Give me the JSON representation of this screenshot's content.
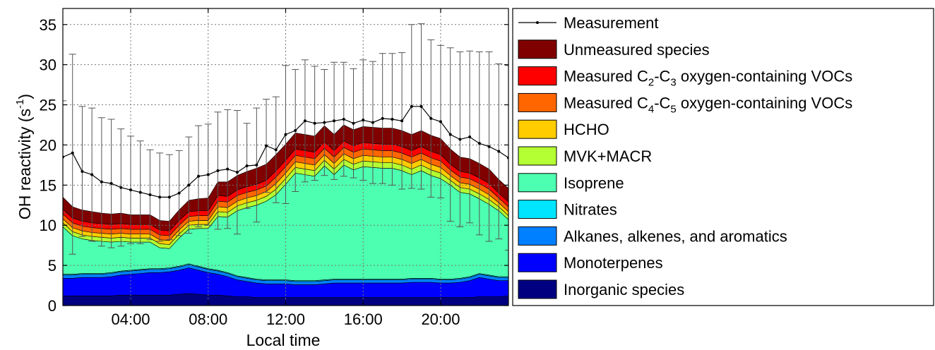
{
  "chart_data": {
    "type": "area",
    "x": [
      0.5,
      1,
      1.5,
      2,
      2.5,
      3,
      3.5,
      4,
      4.5,
      5,
      5.5,
      6,
      6.5,
      7,
      7.5,
      8,
      8.5,
      9,
      9.5,
      10,
      10.5,
      11,
      11.5,
      12,
      12.5,
      13,
      13.5,
      14,
      14.5,
      15,
      15.5,
      16,
      16.5,
      17,
      17.5,
      18,
      18.5,
      19,
      19.5,
      20,
      20.5,
      21,
      21.5,
      22,
      22.5,
      23,
      23.5
    ],
    "x_ticks": [
      4,
      8,
      12,
      16,
      20
    ],
    "x_tick_labels": [
      "04:00",
      "08:00",
      "12:00",
      "16:00",
      "20:00"
    ],
    "xlim": [
      0.5,
      23.5
    ],
    "xlabel": "Local time",
    "ylabel": "OH reactivity (s",
    "ylabel_sup": "-1",
    "ylabel_close": ")",
    "ylim": [
      0,
      37
    ],
    "y_ticks": [
      0,
      5,
      10,
      15,
      20,
      25,
      30,
      35
    ],
    "y_tick_labels": [
      "0",
      "5",
      "10",
      "15",
      "20",
      "25",
      "30",
      "35"
    ],
    "grid": true,
    "legend_placement": "right",
    "series": [
      {
        "name": "Inorganic species",
        "color": "#000080",
        "values": [
          1.2,
          1.2,
          1.2,
          1.2,
          1.2,
          1.2,
          1.3,
          1.3,
          1.3,
          1.3,
          1.3,
          1.3,
          1.4,
          1.5,
          1.4,
          1.3,
          1.3,
          1.2,
          1.1,
          1.1,
          1.0,
          1.0,
          1.0,
          1.0,
          1.0,
          1.0,
          1.0,
          1.0,
          1.0,
          1.0,
          1.0,
          1.0,
          1.0,
          1.0,
          1.0,
          1.0,
          1.0,
          1.0,
          1.0,
          1.0,
          1.0,
          1.0,
          1.0,
          1.1,
          1.1,
          1.1,
          1.2
        ]
      },
      {
        "name": "Monoterpenes",
        "color": "#0000ff",
        "values": [
          2.2,
          2.2,
          2.3,
          2.3,
          2.3,
          2.4,
          2.5,
          2.6,
          2.7,
          2.8,
          2.8,
          2.9,
          3.0,
          3.2,
          3.0,
          2.8,
          2.6,
          2.4,
          2.1,
          1.9,
          1.8,
          1.7,
          1.7,
          1.7,
          1.6,
          1.6,
          1.6,
          1.7,
          1.8,
          1.8,
          1.8,
          1.8,
          1.8,
          1.8,
          1.8,
          1.8,
          1.9,
          1.9,
          1.9,
          1.8,
          1.8,
          1.9,
          2.1,
          2.4,
          2.2,
          2.0,
          1.9
        ]
      },
      {
        "name": "Alkanes, alkenes, and aromatics",
        "color": "#0080ff",
        "values": [
          0.4,
          0.4,
          0.4,
          0.4,
          0.4,
          0.4,
          0.4,
          0.4,
          0.4,
          0.4,
          0.4,
          0.4,
          0.4,
          0.4,
          0.4,
          0.4,
          0.4,
          0.4,
          0.4,
          0.4,
          0.4,
          0.4,
          0.4,
          0.4,
          0.4,
          0.4,
          0.4,
          0.4,
          0.4,
          0.4,
          0.4,
          0.4,
          0.4,
          0.4,
          0.4,
          0.4,
          0.4,
          0.4,
          0.4,
          0.4,
          0.4,
          0.4,
          0.4,
          0.4,
          0.4,
          0.4,
          0.4
        ]
      },
      {
        "name": "Nitrates",
        "color": "#00e5ff",
        "values": [
          0.1,
          0.1,
          0.1,
          0.1,
          0.1,
          0.1,
          0.1,
          0.1,
          0.1,
          0.1,
          0.1,
          0.1,
          0.1,
          0.1,
          0.1,
          0.1,
          0.1,
          0.1,
          0.1,
          0.1,
          0.1,
          0.1,
          0.1,
          0.1,
          0.1,
          0.1,
          0.1,
          0.1,
          0.1,
          0.1,
          0.1,
          0.1,
          0.1,
          0.1,
          0.1,
          0.1,
          0.1,
          0.1,
          0.1,
          0.1,
          0.1,
          0.1,
          0.1,
          0.1,
          0.1,
          0.1,
          0.1
        ]
      },
      {
        "name": "Isoprene",
        "color": "#4dffb0",
        "values": [
          5.9,
          4.8,
          4.3,
          4.1,
          4.0,
          3.8,
          3.7,
          3.5,
          3.4,
          3.3,
          2.6,
          2.4,
          3.5,
          4.3,
          4.7,
          5.0,
          6.7,
          6.9,
          8.1,
          8.7,
          9.2,
          9.8,
          10.6,
          11.9,
          13.4,
          13.2,
          13.0,
          14.2,
          13.0,
          14.2,
          13.6,
          14.0,
          13.9,
          13.8,
          13.8,
          13.5,
          12.9,
          13.4,
          12.8,
          12.5,
          11.7,
          10.7,
          10.3,
          9.3,
          8.8,
          8.2,
          7.1
        ]
      },
      {
        "name": "MVK+MACR",
        "color": "#b3ff33",
        "values": [
          0.5,
          0.5,
          0.5,
          0.5,
          0.5,
          0.5,
          0.5,
          0.5,
          0.5,
          0.5,
          0.5,
          0.5,
          0.5,
          0.5,
          0.5,
          0.5,
          0.6,
          0.6,
          0.6,
          0.6,
          0.6,
          0.6,
          0.7,
          0.7,
          0.7,
          0.7,
          0.7,
          0.7,
          0.7,
          0.7,
          0.7,
          0.7,
          0.7,
          0.7,
          0.7,
          0.7,
          0.7,
          0.7,
          0.7,
          0.7,
          0.6,
          0.6,
          0.6,
          0.6,
          0.6,
          0.5,
          0.5
        ]
      },
      {
        "name": "HCHO",
        "color": "#ffcc00",
        "values": [
          0.5,
          0.5,
          0.5,
          0.5,
          0.5,
          0.5,
          0.5,
          0.5,
          0.5,
          0.5,
          0.5,
          0.5,
          0.5,
          0.5,
          0.5,
          0.5,
          0.6,
          0.6,
          0.6,
          0.6,
          0.6,
          0.6,
          0.7,
          0.7,
          0.7,
          0.7,
          0.7,
          0.7,
          0.7,
          0.7,
          0.7,
          0.7,
          0.7,
          0.7,
          0.7,
          0.7,
          0.7,
          0.7,
          0.7,
          0.7,
          0.6,
          0.6,
          0.6,
          0.6,
          0.6,
          0.5,
          0.5
        ]
      },
      {
        "name": "Measured C4-C5 oxygen-containing VOCs",
        "label_parts": [
          "Measured C",
          "4",
          "-C",
          "5",
          " oxygen-containing VOCs"
        ],
        "color": "#ff6600",
        "values": [
          0.6,
          0.6,
          0.6,
          0.6,
          0.6,
          0.6,
          0.6,
          0.6,
          0.6,
          0.6,
          0.6,
          0.6,
          0.6,
          0.6,
          0.6,
          0.6,
          0.7,
          0.7,
          0.7,
          0.7,
          0.7,
          0.7,
          0.8,
          0.8,
          0.8,
          0.8,
          0.8,
          0.8,
          0.8,
          0.8,
          0.8,
          0.8,
          0.8,
          0.8,
          0.8,
          0.8,
          0.8,
          0.8,
          0.8,
          0.8,
          0.7,
          0.7,
          0.7,
          0.7,
          0.7,
          0.6,
          0.6
        ]
      },
      {
        "name": "Measured C2-C3 oxygen-containing VOCs",
        "label_parts": [
          "Measured C",
          "2",
          "-C",
          "3",
          " oxygen-containing VOCs"
        ],
        "color": "#ff0000",
        "values": [
          0.6,
          0.6,
          0.6,
          0.6,
          0.6,
          0.6,
          0.6,
          0.6,
          0.6,
          0.6,
          0.6,
          0.6,
          0.6,
          0.6,
          0.6,
          0.6,
          0.7,
          0.7,
          0.7,
          0.7,
          0.7,
          0.7,
          0.8,
          0.8,
          0.8,
          0.8,
          0.8,
          0.8,
          0.8,
          0.8,
          0.8,
          0.8,
          0.8,
          0.8,
          0.8,
          0.8,
          0.8,
          0.8,
          0.8,
          0.8,
          0.7,
          0.7,
          0.7,
          0.7,
          0.7,
          0.6,
          0.6
        ]
      },
      {
        "name": "Unmeasured species",
        "color": "#800000",
        "values": [
          1.5,
          1.4,
          1.4,
          1.4,
          1.3,
          1.3,
          1.3,
          1.2,
          1.2,
          1.2,
          1.2,
          1.2,
          1.3,
          1.4,
          1.5,
          1.6,
          1.7,
          1.8,
          1.8,
          1.9,
          2.0,
          2.0,
          2.0,
          2.0,
          2.0,
          2.0,
          2.0,
          2.0,
          2.0,
          2.0,
          2.0,
          2.0,
          2.0,
          2.0,
          2.0,
          2.0,
          2.0,
          2.0,
          2.0,
          2.0,
          1.9,
          1.8,
          1.8,
          1.8,
          1.8,
          1.7,
          1.7
        ]
      }
    ],
    "measurement": {
      "name": "Measurement",
      "color": "#000000",
      "values": [
        18.5,
        19.0,
        16.7,
        16.3,
        15.4,
        15.2,
        14.7,
        14.4,
        14.1,
        13.8,
        13.5,
        13.5,
        14.0,
        15.0,
        16.1,
        16.3,
        16.8,
        17.0,
        16.6,
        17.4,
        17.5,
        19.9,
        19.4,
        21.3,
        21.8,
        23.0,
        22.7,
        22.8,
        23.0,
        23.2,
        22.7,
        23.1,
        22.8,
        23.3,
        23.2,
        23.0,
        24.8,
        24.8,
        23.3,
        22.9,
        21.3,
        20.7,
        21.0,
        20.2,
        19.8,
        19.2,
        18.4
      ],
      "err_upper": [
        25.5,
        31.3,
        24.8,
        24.6,
        23.4,
        23.2,
        22.0,
        21.1,
        20.5,
        19.4,
        19.0,
        18.8,
        19.3,
        21.0,
        22.4,
        22.6,
        24.1,
        24.4,
        24.3,
        22.7,
        24.6,
        25.7,
        26.0,
        29.9,
        29.4,
        30.6,
        29.8,
        29.4,
        30.3,
        30.3,
        29.5,
        30.6,
        30.4,
        31.4,
        31.4,
        31.5,
        35.0,
        35.1,
        33.1,
        32.4,
        32.1,
        31.6,
        31.7,
        31.6,
        31.6,
        30.1,
        29.9
      ],
      "err_lower": [
        11.5,
        6.4,
        8.6,
        8.0,
        7.4,
        7.2,
        7.4,
        7.7,
        7.7,
        8.2,
        8.0,
        8.2,
        8.7,
        9.0,
        9.8,
        10.0,
        9.5,
        9.6,
        8.9,
        12.1,
        10.4,
        14.1,
        12.8,
        12.7,
        14.2,
        15.4,
        15.6,
        16.2,
        15.7,
        16.1,
        15.9,
        15.6,
        15.2,
        15.2,
        15.0,
        14.5,
        14.6,
        14.5,
        13.5,
        13.4,
        10.5,
        9.8,
        10.3,
        8.8,
        8.0,
        8.3,
        6.9
      ]
    }
  }
}
